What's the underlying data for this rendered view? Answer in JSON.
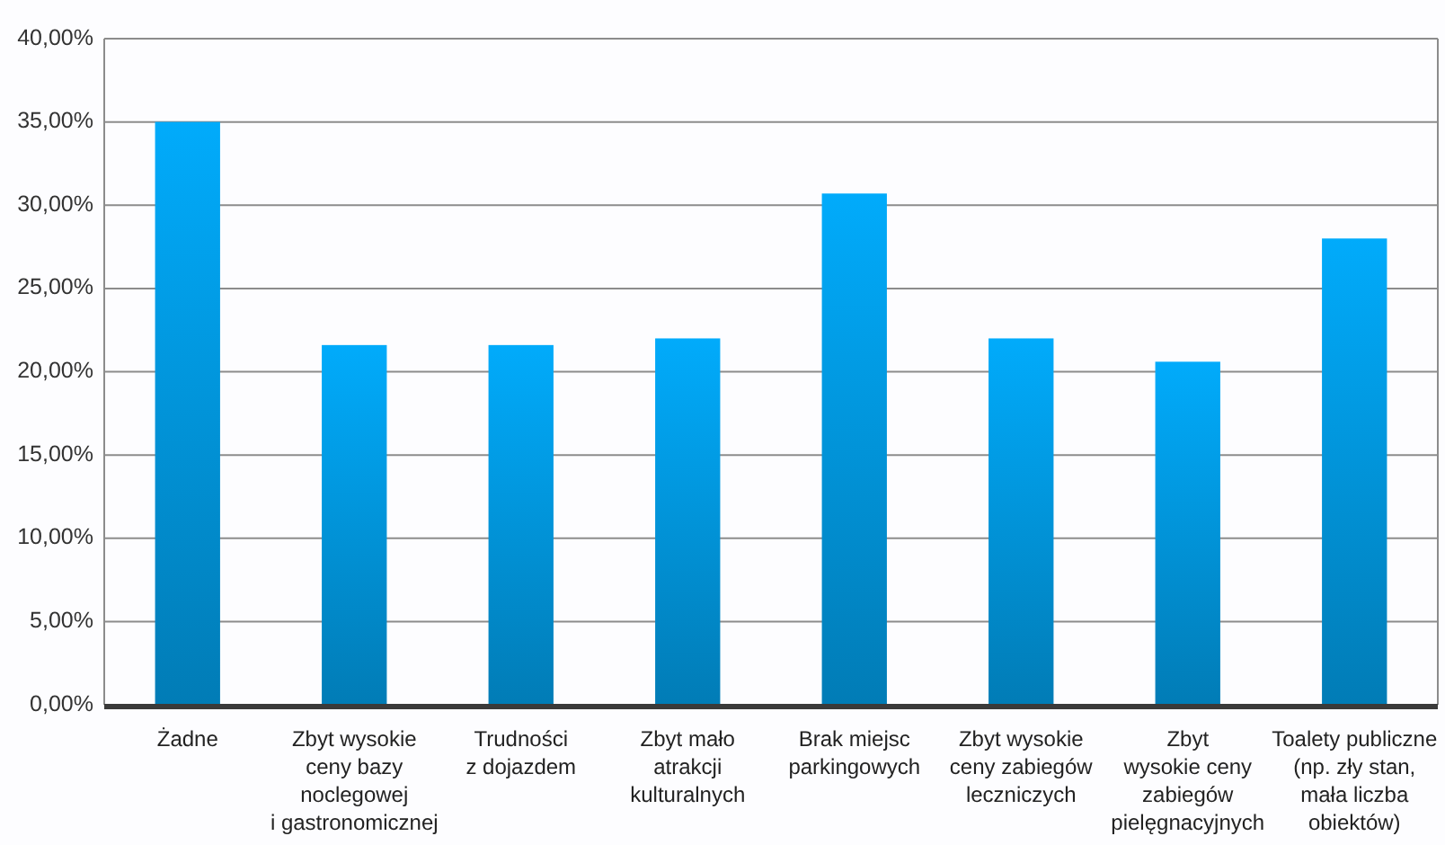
{
  "chart_data": {
    "type": "bar",
    "categories": [
      "Żadne",
      "Zbyt wysokie\nceny bazy\nnoclegowej\ni gastronomicznej",
      "Trudności\nz dojazdem",
      "Zbyt mało\natrakcji\nkulturalnych",
      "Brak miejsc\nparkingowych",
      "Zbyt wysokie\nceny zabiegów\nleczniczych",
      "Zbyt\nwysokie ceny\nzabiegów\npielęgnacyjnych",
      "Toalety publiczne\n(np. zły stan,\nmała liczba\nobiektów)"
    ],
    "values": [
      35.0,
      21.6,
      21.6,
      22.0,
      30.7,
      22.0,
      20.6,
      28.0
    ],
    "color": "#0192d6",
    "ylim": [
      0,
      40
    ],
    "yticks": [
      {
        "value": 0,
        "label": "0,00%"
      },
      {
        "value": 5,
        "label": "5,00%"
      },
      {
        "value": 10,
        "label": "10,00%"
      },
      {
        "value": 15,
        "label": "15,00%"
      },
      {
        "value": 20,
        "label": "20,00%"
      },
      {
        "value": 25,
        "label": "25,00%"
      },
      {
        "value": 30,
        "label": "30,00%"
      },
      {
        "value": 35,
        "label": "35,00%"
      },
      {
        "value": 40,
        "label": "40,00%"
      }
    ],
    "grid": "y"
  }
}
